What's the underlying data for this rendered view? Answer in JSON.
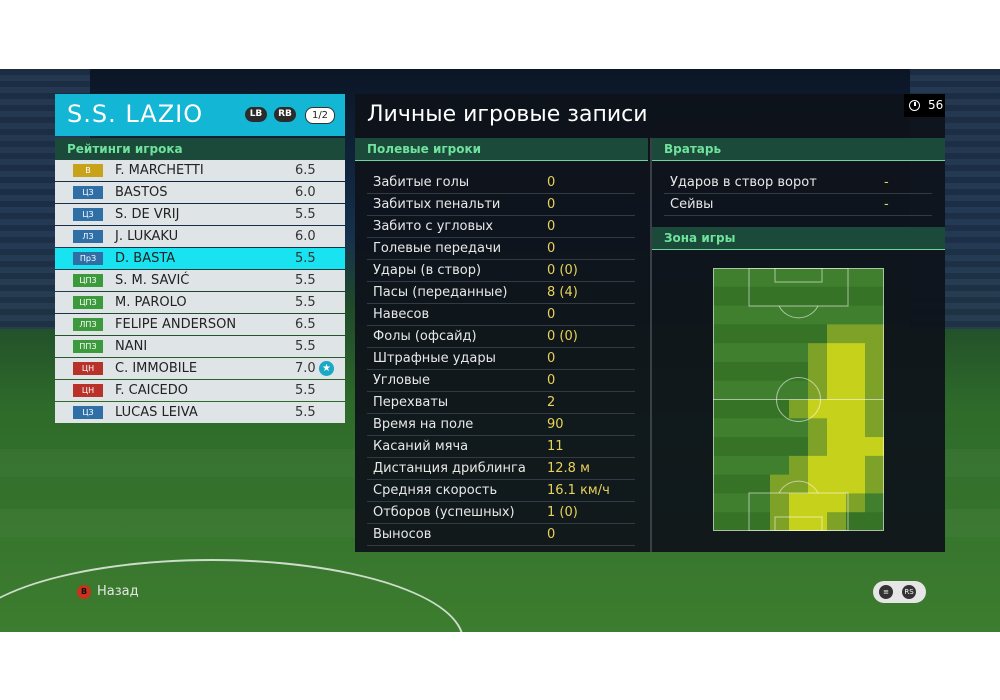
{
  "team": {
    "name": "S.S. LAZIO",
    "lb": "LB",
    "rb": "RB",
    "page": "1/2"
  },
  "ratings_title": "Рейтинги игрока",
  "players": [
    {
      "pos": "В",
      "pos_color": "#c8a21a",
      "name": "F. MARCHETTI",
      "rating": "6.5"
    },
    {
      "pos": "ЦЗ",
      "pos_color": "#2f6fa6",
      "name": "BASTOS",
      "rating": "6.0"
    },
    {
      "pos": "ЦЗ",
      "pos_color": "#2f6fa6",
      "name": "S. DE VRIJ",
      "rating": "5.5"
    },
    {
      "pos": "ЛЗ",
      "pos_color": "#2f6fa6",
      "name": "J. LUKAKU",
      "rating": "6.0"
    },
    {
      "pos": "ПрЗ",
      "pos_color": "#2f6fa6",
      "name": "D. BASTA",
      "rating": "5.5"
    },
    {
      "pos": "ЦПЗ",
      "pos_color": "#3c9a3c",
      "name": "S. M. SAVIĆ",
      "rating": "5.5"
    },
    {
      "pos": "ЦПЗ",
      "pos_color": "#3c9a3c",
      "name": "M. PAROLO",
      "rating": "5.5"
    },
    {
      "pos": "ЛПЗ",
      "pos_color": "#3c9a3c",
      "name": "FELIPE ANDERSON",
      "rating": "6.5"
    },
    {
      "pos": "ППЗ",
      "pos_color": "#3c9a3c",
      "name": "NANI",
      "rating": "5.5"
    },
    {
      "pos": "ЦН",
      "pos_color": "#b8322a",
      "name": "C. IMMOBILE",
      "rating": "7.0",
      "star": true
    },
    {
      "pos": "ЦН",
      "pos_color": "#b8322a",
      "name": "F. CAICEDO",
      "rating": "5.5"
    },
    {
      "pos": "ЦЗ",
      "pos_color": "#2f6fa6",
      "name": "LUCAS LEIVA",
      "rating": "5.5"
    }
  ],
  "selected_index": 4,
  "stats": {
    "title": "Личные игровые записи",
    "timer": "56",
    "field_header": "Полевые игроки",
    "gk_header": "Вратарь",
    "zone_header": "Зона игры",
    "field_rows": [
      {
        "label": "Забитые голы",
        "value": "0"
      },
      {
        "label": "Забитых пенальти",
        "value": "0"
      },
      {
        "label": "Забито с угловых",
        "value": "0"
      },
      {
        "label": "Голевые передачи",
        "value": "0"
      },
      {
        "label": "Удары (в створ)",
        "value": "0 (0)"
      },
      {
        "label": "Пасы (переданные)",
        "value": "8 (4)"
      },
      {
        "label": "Навесов",
        "value": "0"
      },
      {
        "label": "Фолы (офсайд)",
        "value": "0 (0)"
      },
      {
        "label": "Штрафные удары",
        "value": "0"
      },
      {
        "label": "Угловые",
        "value": "0"
      },
      {
        "label": "Перехваты",
        "value": "2"
      },
      {
        "label": "Время на поле",
        "value": "90"
      },
      {
        "label": "Касаний мяча",
        "value": "11"
      },
      {
        "label": "Дистанция дриблинга",
        "value": "12.8 м"
      },
      {
        "label": "Средняя скорость",
        "value": "16.1 км/ч"
      },
      {
        "label": "Отборов (успешных)",
        "value": "1 (0)"
      },
      {
        "label": "Выносов",
        "value": "0"
      }
    ],
    "gk_rows": [
      {
        "label": "Ударов в створ ворот",
        "value": "-"
      },
      {
        "label": "Сейвы",
        "value": "-"
      }
    ]
  },
  "footer": {
    "back_key": "B",
    "back_label": "Назад",
    "rs_label": "RS"
  },
  "colors": {
    "accent": "#13b6d4",
    "selected_row": "#19e3f0",
    "value_yellow": "#e8d25a",
    "section_green": "#6fe29e"
  }
}
